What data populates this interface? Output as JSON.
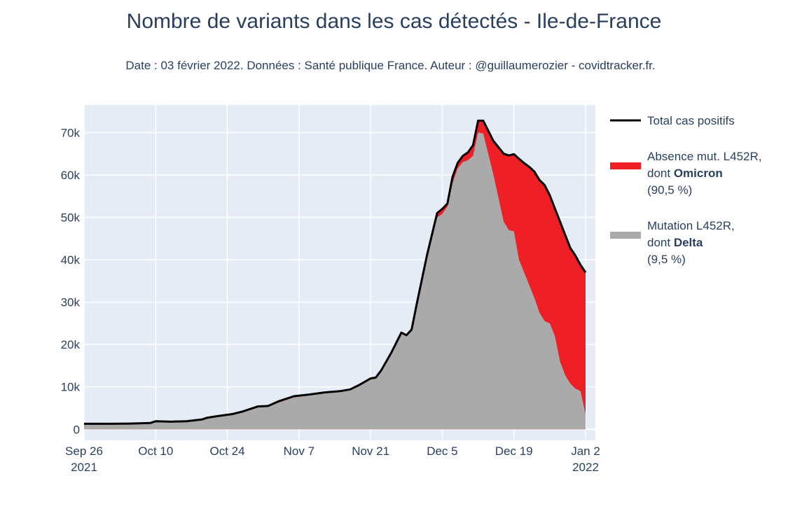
{
  "chart_data": {
    "type": "area",
    "title": "Nombre de variants dans les cas détectés - Ile-de-France",
    "subtitle": "Date : 03 février 2022. Données : Santé publique France. Auteur : @guillaumerozier - covidtracker.fr.",
    "xlabel": "",
    "ylabel": "",
    "ylim": [
      -2600,
      76500
    ],
    "y_ticks": [
      0,
      10000,
      20000,
      30000,
      40000,
      50000,
      60000,
      70000
    ],
    "y_tick_labels": [
      "0",
      "10k",
      "20k",
      "30k",
      "40k",
      "50k",
      "60k",
      "70k"
    ],
    "x_ticks": [
      {
        "date": "2021-09-26",
        "line1": "Sep 26",
        "line2": "2021"
      },
      {
        "date": "2021-10-10",
        "line1": "Oct 10",
        "line2": ""
      },
      {
        "date": "2021-10-24",
        "line1": "Oct 24",
        "line2": ""
      },
      {
        "date": "2021-11-07",
        "line1": "Nov 7",
        "line2": ""
      },
      {
        "date": "2021-11-21",
        "line1": "Nov 21",
        "line2": ""
      },
      {
        "date": "2021-12-05",
        "line1": "Dec 5",
        "line2": ""
      },
      {
        "date": "2021-12-19",
        "line1": "Dec 19",
        "line2": ""
      },
      {
        "date": "2022-01-02",
        "line1": "Jan 2",
        "line2": "2022"
      }
    ],
    "xlim": [
      "2021-09-26",
      "2022-01-02"
    ],
    "grid": true,
    "legend_position": "right",
    "series": [
      {
        "name": "Total cas positifs",
        "color": "#000000",
        "style": "line",
        "points": [
          [
            "2021-09-26",
            1300
          ],
          [
            "2021-09-30",
            1300
          ],
          [
            "2021-10-01",
            1300
          ],
          [
            "2021-10-05",
            1350
          ],
          [
            "2021-10-09",
            1500
          ],
          [
            "2021-10-10",
            1900
          ],
          [
            "2021-10-13",
            1800
          ],
          [
            "2021-10-16",
            1900
          ],
          [
            "2021-10-19",
            2300
          ],
          [
            "2021-10-20",
            2700
          ],
          [
            "2021-10-22",
            3100
          ],
          [
            "2021-10-25",
            3600
          ],
          [
            "2021-10-27",
            4200
          ],
          [
            "2021-10-30",
            5400
          ],
          [
            "2021-11-01",
            5500
          ],
          [
            "2021-11-03",
            6600
          ],
          [
            "2021-11-06",
            7800
          ],
          [
            "2021-11-09",
            8200
          ],
          [
            "2021-11-12",
            8700
          ],
          [
            "2021-11-15",
            9000
          ],
          [
            "2021-11-17",
            9400
          ],
          [
            "2021-11-19",
            10600
          ],
          [
            "2021-11-21",
            12000
          ],
          [
            "2021-11-22",
            12200
          ],
          [
            "2021-11-23",
            13800
          ],
          [
            "2021-11-25",
            18000
          ],
          [
            "2021-11-27",
            22800
          ],
          [
            "2021-11-28",
            22200
          ],
          [
            "2021-11-29",
            23500
          ],
          [
            "2021-11-30",
            29500
          ],
          [
            "2021-12-02",
            41000
          ],
          [
            "2021-12-04",
            51000
          ],
          [
            "2021-12-05",
            52000
          ],
          [
            "2021-12-06",
            53200
          ],
          [
            "2021-12-07",
            59500
          ],
          [
            "2021-12-08",
            62800
          ],
          [
            "2021-12-09",
            64500
          ],
          [
            "2021-12-10",
            65300
          ],
          [
            "2021-12-11",
            67000
          ],
          [
            "2021-12-12",
            72800
          ],
          [
            "2021-12-13",
            72800
          ],
          [
            "2021-12-15",
            68000
          ],
          [
            "2021-12-17",
            65000
          ],
          [
            "2021-12-18",
            64600
          ],
          [
            "2021-12-19",
            64900
          ],
          [
            "2021-12-20",
            63800
          ],
          [
            "2021-12-21",
            62800
          ],
          [
            "2021-12-22",
            61900
          ],
          [
            "2021-12-23",
            60800
          ],
          [
            "2021-12-24",
            58800
          ],
          [
            "2021-12-25",
            57600
          ],
          [
            "2021-12-26",
            55200
          ],
          [
            "2021-12-28",
            49000
          ],
          [
            "2021-12-30",
            42800
          ],
          [
            "2021-12-31",
            41000
          ],
          [
            "2022-01-01",
            38800
          ],
          [
            "2022-01-02",
            37000
          ]
        ]
      },
      {
        "name": "Absence mut. L452R, dont Omicron (90,5 %)",
        "color": "#ee1f25",
        "style": "area",
        "points": [
          [
            "2021-09-26",
            1300
          ],
          [
            "2021-09-30",
            1300
          ],
          [
            "2021-10-01",
            1300
          ],
          [
            "2021-10-05",
            1350
          ],
          [
            "2021-10-09",
            1500
          ],
          [
            "2021-10-10",
            1900
          ],
          [
            "2021-10-13",
            1800
          ],
          [
            "2021-10-16",
            1900
          ],
          [
            "2021-10-19",
            2300
          ],
          [
            "2021-10-20",
            2700
          ],
          [
            "2021-10-22",
            3100
          ],
          [
            "2021-10-25",
            3600
          ],
          [
            "2021-10-27",
            4200
          ],
          [
            "2021-10-30",
            5400
          ],
          [
            "2021-11-01",
            5500
          ],
          [
            "2021-11-03",
            6600
          ],
          [
            "2021-11-06",
            7800
          ],
          [
            "2021-11-09",
            8200
          ],
          [
            "2021-11-12",
            8700
          ],
          [
            "2021-11-15",
            9000
          ],
          [
            "2021-11-17",
            9400
          ],
          [
            "2021-11-19",
            10600
          ],
          [
            "2021-11-21",
            12000
          ],
          [
            "2021-11-22",
            12200
          ],
          [
            "2021-11-23",
            13800
          ],
          [
            "2021-11-25",
            18000
          ],
          [
            "2021-11-27",
            22800
          ],
          [
            "2021-11-28",
            22200
          ],
          [
            "2021-11-29",
            23500
          ],
          [
            "2021-11-30",
            29500
          ],
          [
            "2021-12-02",
            41000
          ],
          [
            "2021-12-04",
            51000
          ],
          [
            "2021-12-05",
            52000
          ],
          [
            "2021-12-06",
            53200
          ],
          [
            "2021-12-07",
            59500
          ],
          [
            "2021-12-08",
            62800
          ],
          [
            "2021-12-09",
            64500
          ],
          [
            "2021-12-10",
            65300
          ],
          [
            "2021-12-11",
            67000
          ],
          [
            "2021-12-12",
            72800
          ],
          [
            "2021-12-13",
            72800
          ],
          [
            "2021-12-15",
            68000
          ],
          [
            "2021-12-17",
            65000
          ],
          [
            "2021-12-18",
            64600
          ],
          [
            "2021-12-19",
            64900
          ],
          [
            "2021-12-20",
            63800
          ],
          [
            "2021-12-21",
            62800
          ],
          [
            "2021-12-22",
            61900
          ],
          [
            "2021-12-23",
            60800
          ],
          [
            "2021-12-24",
            58800
          ],
          [
            "2021-12-25",
            57600
          ],
          [
            "2021-12-26",
            55200
          ],
          [
            "2021-12-28",
            49000
          ],
          [
            "2021-12-30",
            42800
          ],
          [
            "2021-12-31",
            41000
          ],
          [
            "2022-01-01",
            38800
          ],
          [
            "2022-01-02",
            37000
          ]
        ]
      },
      {
        "name": "Mutation L452R, dont Delta (9,5 %)",
        "color": "#aaaaaa",
        "style": "area",
        "points": [
          [
            "2021-09-26",
            1300
          ],
          [
            "2021-09-30",
            1300
          ],
          [
            "2021-10-01",
            1300
          ],
          [
            "2021-10-05",
            1350
          ],
          [
            "2021-10-09",
            1500
          ],
          [
            "2021-10-10",
            1900
          ],
          [
            "2021-10-13",
            1800
          ],
          [
            "2021-10-16",
            1900
          ],
          [
            "2021-10-19",
            2300
          ],
          [
            "2021-10-20",
            2700
          ],
          [
            "2021-10-22",
            3100
          ],
          [
            "2021-10-25",
            3600
          ],
          [
            "2021-10-27",
            4200
          ],
          [
            "2021-10-30",
            5300
          ],
          [
            "2021-11-01",
            5400
          ],
          [
            "2021-11-03",
            6300
          ],
          [
            "2021-11-06",
            7500
          ],
          [
            "2021-11-09",
            8000
          ],
          [
            "2021-11-12",
            8500
          ],
          [
            "2021-11-15",
            8900
          ],
          [
            "2021-11-17",
            9300
          ],
          [
            "2021-11-19",
            10500
          ],
          [
            "2021-11-21",
            11900
          ],
          [
            "2021-11-22",
            12100
          ],
          [
            "2021-11-23",
            13700
          ],
          [
            "2021-11-25",
            17900
          ],
          [
            "2021-11-27",
            22500
          ],
          [
            "2021-11-28",
            21900
          ],
          [
            "2021-11-29",
            23200
          ],
          [
            "2021-11-30",
            29000
          ],
          [
            "2021-12-02",
            40500
          ],
          [
            "2021-12-04",
            50000
          ],
          [
            "2021-12-05",
            50800
          ],
          [
            "2021-12-06",
            52500
          ],
          [
            "2021-12-07",
            58000
          ],
          [
            "2021-12-08",
            61500
          ],
          [
            "2021-12-09",
            63000
          ],
          [
            "2021-12-10",
            63500
          ],
          [
            "2021-12-11",
            64500
          ],
          [
            "2021-12-12",
            70000
          ],
          [
            "2021-12-13",
            69800
          ],
          [
            "2021-12-15",
            60000
          ],
          [
            "2021-12-17",
            49000
          ],
          [
            "2021-12-18",
            47000
          ],
          [
            "2021-12-19",
            46700
          ],
          [
            "2021-12-20",
            40000
          ],
          [
            "2021-12-21",
            37000
          ],
          [
            "2021-12-22",
            34000
          ],
          [
            "2021-12-23",
            31000
          ],
          [
            "2021-12-24",
            27500
          ],
          [
            "2021-12-25",
            25500
          ],
          [
            "2021-12-26",
            25000
          ],
          [
            "2021-12-27",
            22000
          ],
          [
            "2021-12-28",
            16000
          ],
          [
            "2021-12-29",
            12800
          ],
          [
            "2021-12-30",
            10800
          ],
          [
            "2021-12-31",
            9600
          ],
          [
            "2022-01-01",
            9000
          ],
          [
            "2022-01-02",
            3600
          ]
        ]
      }
    ],
    "legend": [
      {
        "line1": "Total cas positifs",
        "line2_prefix": "",
        "line2_bold": "",
        "line3": "",
        "color": "#000000"
      },
      {
        "line1": "Absence mut. L452R,",
        "line2_prefix": "dont ",
        "line2_bold": "Omicron",
        "line3": " (90,5 %)",
        "color": "#ee1f25"
      },
      {
        "line1": "Mutation L452R,",
        "line2_prefix": "dont ",
        "line2_bold": "Delta",
        "line3": " (9,5 %)",
        "color": "#aaaaaa"
      }
    ]
  }
}
